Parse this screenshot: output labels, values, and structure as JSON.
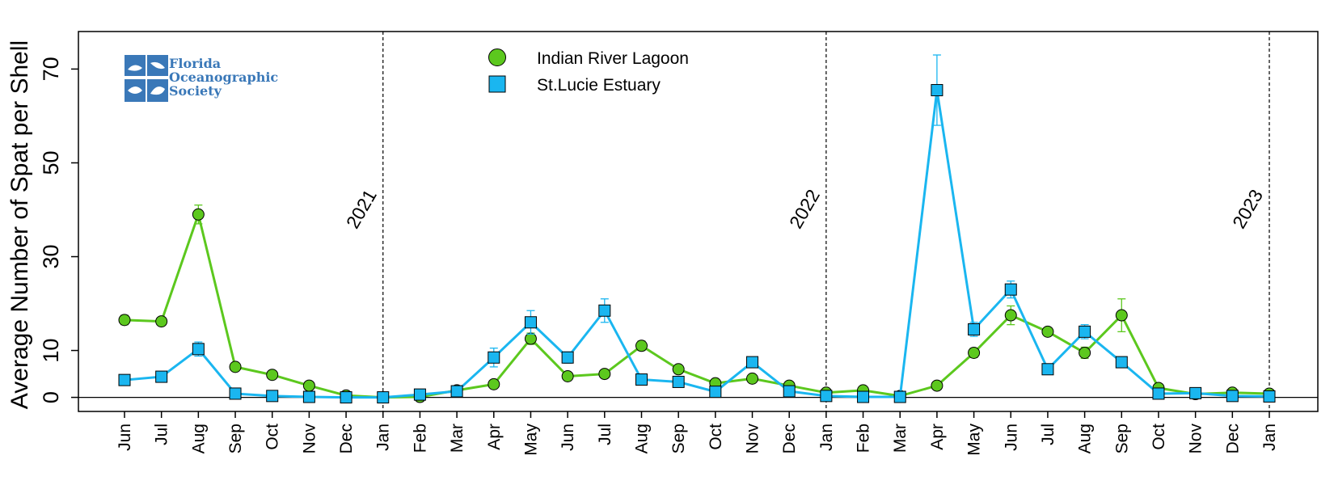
{
  "chart_data": {
    "type": "line",
    "ylabel": "Average Number of Spat per Shell",
    "xlabel": "",
    "ylim": [
      -3,
      78
    ],
    "y_ticks": [
      0,
      10,
      30,
      50,
      70
    ],
    "grid": false,
    "legend_position": "top-center",
    "categories": [
      "Jun",
      "Jul",
      "Aug",
      "Sep",
      "Oct",
      "Nov",
      "Dec",
      "Jan",
      "Feb",
      "Mar",
      "Apr",
      "May",
      "Jun",
      "Jul",
      "Aug",
      "Sep",
      "Oct",
      "Nov",
      "Dec",
      "Jan",
      "Feb",
      "Mar",
      "Apr",
      "May",
      "Jun",
      "Jul",
      "Aug",
      "Sep",
      "Oct",
      "Nov",
      "Dec",
      "Jan"
    ],
    "year_markers": [
      {
        "label": "2021",
        "index": 7
      },
      {
        "label": "2022",
        "index": 19
      },
      {
        "label": "2023",
        "index": 31
      }
    ],
    "reference_line_y": 0,
    "series": [
      {
        "name": "Indian River Lagoon",
        "color": "#5cc81e",
        "marker": "circle",
        "values": [
          16.5,
          16.2,
          39,
          6.5,
          4.8,
          2.5,
          0.4,
          0,
          0.1,
          1.5,
          2.8,
          12.5,
          4.5,
          5,
          11,
          6,
          3,
          4,
          2.5,
          1,
          1.5,
          0.3,
          2.5,
          9.5,
          17.5,
          14,
          9.5,
          17.5,
          2,
          0.7,
          1,
          0.8
        ],
        "error": [
          1,
          0.8,
          2,
          0.5,
          0.5,
          0.3,
          0.2,
          0,
          0.1,
          0.4,
          0.4,
          1.2,
          0.5,
          0.6,
          1,
          0.6,
          0.4,
          0.4,
          0.3,
          0.2,
          0.3,
          0.1,
          0.4,
          1,
          2,
          0.8,
          1.2,
          3.5,
          0.4,
          0.2,
          0.2,
          0.2
        ]
      },
      {
        "name": "St.Lucie Estuary",
        "color": "#1ab6f0",
        "marker": "square",
        "values": [
          3.7,
          4.4,
          10.3,
          0.8,
          0.3,
          0.1,
          0,
          0,
          0.6,
          1.3,
          8.5,
          16,
          8.5,
          18.5,
          3.8,
          3.3,
          1.2,
          7.5,
          1.3,
          0.3,
          0.1,
          0.1,
          65.5,
          14.5,
          23,
          6,
          14,
          7.5,
          0.8,
          0.9,
          0.3,
          0.2
        ],
        "error": [
          0.3,
          0.4,
          1.5,
          0.2,
          0.1,
          0.05,
          0,
          0,
          0.2,
          0.3,
          2,
          2.5,
          1.2,
          2.5,
          0.5,
          0.4,
          0.3,
          0.8,
          0.3,
          0.1,
          0.05,
          0.05,
          7.5,
          1.5,
          1.8,
          0.8,
          1.5,
          1,
          0.2,
          0.2,
          0.1,
          0.1
        ]
      }
    ]
  },
  "logo": {
    "line1": "Florida",
    "line2": "Oceanographic",
    "line3": "Society"
  }
}
